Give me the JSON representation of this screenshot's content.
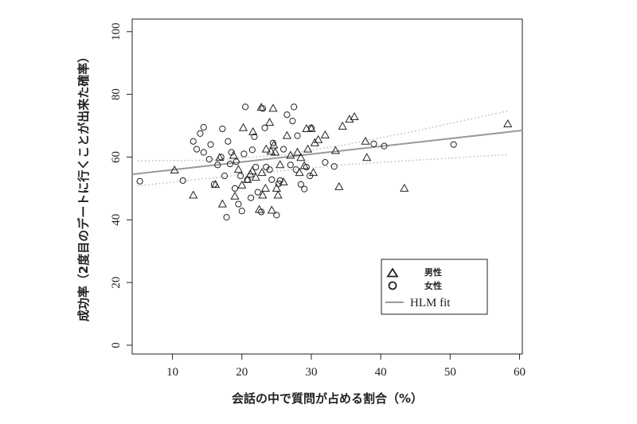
{
  "chart_data": {
    "type": "scatter",
    "title": "",
    "xlabel": "会話の中で質問が占める割合（%）",
    "ylabel": "成功率（2度目のデートに行くことが出来た確率）",
    "xlim": [
      4.2,
      60.4
    ],
    "ylim": [
      -2.8,
      104
    ],
    "xticks": [
      10,
      20,
      30,
      40,
      50,
      60
    ],
    "yticks": [
      0,
      20,
      40,
      60,
      80,
      100
    ],
    "grid": false,
    "legend_position": "bottom-right",
    "legend": [
      {
        "label": "男性",
        "marker": "triangle"
      },
      {
        "label": "女性",
        "marker": "circle"
      },
      {
        "label": "HLM fit",
        "marker": "line",
        "color": "#999999"
      }
    ],
    "series": [
      {
        "name": "男性",
        "marker": "triangle",
        "points": [
          [
            10.3,
            55.8
          ],
          [
            13.0,
            47.8
          ],
          [
            16.2,
            51.2
          ],
          [
            16.8,
            59.8
          ],
          [
            17.2,
            45.0
          ],
          [
            18.8,
            60.5
          ],
          [
            19.0,
            47.5
          ],
          [
            19.5,
            56.0
          ],
          [
            20.0,
            51.0
          ],
          [
            20.2,
            69.3
          ],
          [
            20.8,
            52.8
          ],
          [
            21.2,
            54.5
          ],
          [
            21.5,
            55.5
          ],
          [
            21.6,
            68.0
          ],
          [
            22.0,
            53.5
          ],
          [
            22.5,
            43.2
          ],
          [
            22.8,
            75.8
          ],
          [
            22.9,
            55.0
          ],
          [
            23.0,
            47.8
          ],
          [
            23.4,
            50.0
          ],
          [
            23.5,
            62.5
          ],
          [
            24.0,
            71.0
          ],
          [
            24.2,
            61.8
          ],
          [
            24.3,
            43.0
          ],
          [
            24.5,
            75.5
          ],
          [
            24.6,
            63.8
          ],
          [
            24.8,
            61.5
          ],
          [
            25.0,
            50.0
          ],
          [
            25.2,
            47.8
          ],
          [
            25.5,
            57.5
          ],
          [
            26.0,
            52.0
          ],
          [
            26.5,
            66.8
          ],
          [
            27.0,
            60.5
          ],
          [
            28.0,
            61.5
          ],
          [
            28.3,
            55.0
          ],
          [
            28.5,
            59.8
          ],
          [
            29.0,
            57.2
          ],
          [
            29.3,
            69.0
          ],
          [
            29.5,
            62.5
          ],
          [
            30.0,
            69.0
          ],
          [
            30.3,
            55.0
          ],
          [
            30.5,
            64.5
          ],
          [
            31.0,
            65.5
          ],
          [
            32.0,
            67.0
          ],
          [
            33.5,
            62.0
          ],
          [
            34.0,
            50.5
          ],
          [
            34.5,
            69.8
          ],
          [
            35.5,
            72.0
          ],
          [
            36.2,
            72.8
          ],
          [
            37.8,
            65.0
          ],
          [
            38.0,
            59.8
          ],
          [
            43.4,
            50.0
          ],
          [
            58.3,
            70.5
          ]
        ]
      },
      {
        "name": "女性",
        "marker": "circle",
        "points": [
          [
            5.3,
            52.3
          ],
          [
            11.5,
            52.5
          ],
          [
            13.0,
            65.0
          ],
          [
            13.5,
            62.5
          ],
          [
            14.0,
            67.5
          ],
          [
            14.5,
            69.5
          ],
          [
            14.5,
            61.5
          ],
          [
            15.3,
            59.3
          ],
          [
            15.5,
            64.0
          ],
          [
            16.0,
            51.3
          ],
          [
            16.5,
            57.5
          ],
          [
            17.0,
            60.0
          ],
          [
            17.2,
            69.0
          ],
          [
            17.5,
            54.0
          ],
          [
            17.8,
            40.8
          ],
          [
            18.0,
            65.0
          ],
          [
            18.3,
            57.8
          ],
          [
            18.5,
            61.5
          ],
          [
            19.0,
            50.0
          ],
          [
            19.2,
            58.5
          ],
          [
            19.5,
            45.0
          ],
          [
            19.8,
            54.0
          ],
          [
            20.0,
            42.8
          ],
          [
            20.3,
            61.0
          ],
          [
            20.5,
            76.0
          ],
          [
            20.8,
            52.8
          ],
          [
            21.3,
            47.0
          ],
          [
            21.5,
            62.3
          ],
          [
            21.8,
            66.5
          ],
          [
            22.0,
            56.8
          ],
          [
            22.3,
            48.8
          ],
          [
            22.8,
            42.5
          ],
          [
            23.0,
            75.5
          ],
          [
            23.3,
            69.3
          ],
          [
            23.5,
            56.8
          ],
          [
            24.0,
            56.0
          ],
          [
            24.3,
            52.8
          ],
          [
            24.5,
            64.5
          ],
          [
            25.0,
            41.5
          ],
          [
            25.3,
            51.5
          ],
          [
            25.5,
            52.5
          ],
          [
            26.0,
            62.5
          ],
          [
            26.5,
            73.5
          ],
          [
            27.0,
            57.5
          ],
          [
            27.3,
            71.5
          ],
          [
            27.5,
            76.0
          ],
          [
            27.8,
            56.0
          ],
          [
            28.0,
            66.8
          ],
          [
            28.5,
            51.3
          ],
          [
            29.0,
            49.8
          ],
          [
            29.3,
            56.8
          ],
          [
            29.8,
            54.0
          ],
          [
            30.0,
            69.3
          ],
          [
            32.0,
            58.3
          ],
          [
            33.3,
            57.0
          ],
          [
            39.0,
            64.2
          ],
          [
            40.5,
            63.5
          ],
          [
            50.5,
            64.0
          ]
        ]
      },
      {
        "name": "HLM fit",
        "type": "line",
        "color": "#999999",
        "x": [
          4.2,
          60.4
        ],
        "y": [
          54.5,
          68.5
        ]
      }
    ],
    "confidence_band": {
      "style": "dotted",
      "color": "#bbbbbb",
      "upper": {
        "x": [
          5,
          15,
          25,
          35,
          45,
          58.5
        ],
        "y": [
          58.8,
          59.0,
          60.5,
          64.0,
          68.3,
          74.8
        ]
      },
      "lower": {
        "x": [
          5,
          15,
          25,
          35,
          45,
          58.5
        ],
        "y": [
          50.8,
          53.2,
          55.5,
          57.6,
          59.0,
          60.8
        ]
      }
    }
  }
}
